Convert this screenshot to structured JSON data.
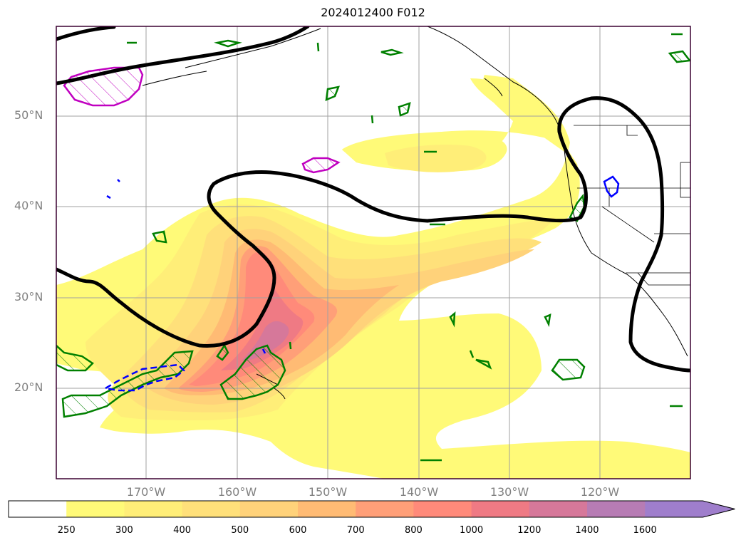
{
  "title": "2024012400 F012",
  "lat_labels": [
    "50°N",
    "40°N",
    "30°N",
    "20°N"
  ],
  "lon_labels": [
    "170°W",
    "160°W",
    "150°W",
    "140°W",
    "130°W",
    "120°W"
  ],
  "colorbar": {
    "ticks": [
      "250",
      "300",
      "400",
      "500",
      "600",
      "700",
      "800",
      "1000",
      "1200",
      "1400",
      "1600"
    ],
    "colors": [
      "#ffffff",
      "#fffa78",
      "#ffee78",
      "#ffe07a",
      "#ffd27a",
      "#ffbb74",
      "#ff9f78",
      "#ff8a7a",
      "#ef7a84",
      "#d6789a",
      "#b77cb4",
      "#9f7ecc"
    ],
    "extend": "max"
  },
  "colors": {
    "jet_contour": "#000000",
    "green_contour": "#008000",
    "magenta_contour": "#c000c0",
    "blue_contour": "#0000ff",
    "grid": "#a0a0a0",
    "coast": "#000000"
  }
}
